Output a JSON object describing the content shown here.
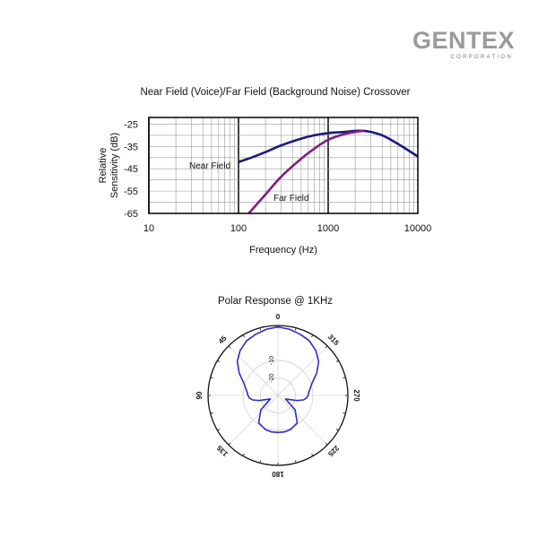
{
  "brand": {
    "name": "GENTEX",
    "subtitle": "CORPORATION"
  },
  "chart_data": [
    {
      "type": "line",
      "title": "Near Field (Voice)/Far Field (Background Noise) Crossover",
      "xlabel": "Frequency (Hz)",
      "ylabel": "Relative Sensitivity (dB)",
      "xscale": "log",
      "xlim": [
        10,
        10000
      ],
      "ylim": [
        -65,
        -22
      ],
      "xticks": [
        "10",
        "100",
        "1000",
        "10000"
      ],
      "xtick_values": [
        10,
        100,
        1000,
        10000
      ],
      "yticks": [
        "-25",
        "-35",
        "-45",
        "-55",
        "-65"
      ],
      "ytick_values": [
        -25,
        -35,
        -45,
        -55,
        -65
      ],
      "grid": true,
      "series": [
        {
          "name": "Near Field",
          "color": "#1a1a7a",
          "x": [
            100,
            150,
            200,
            300,
            500,
            700,
            1000,
            1500,
            2000,
            2500,
            3000,
            4000,
            5000,
            7000,
            10000
          ],
          "y": [
            -42,
            -39.5,
            -37.5,
            -34.5,
            -31.5,
            -30,
            -29,
            -28.5,
            -28,
            -28,
            -28.5,
            -30,
            -32,
            -35.5,
            -39.5
          ]
        },
        {
          "name": "Far Field",
          "color": "#7f1f7f",
          "x": [
            130,
            200,
            300,
            500,
            700,
            1000,
            1500,
            2000,
            2500
          ],
          "y": [
            -65,
            -56.5,
            -48.5,
            -40.5,
            -36,
            -32,
            -29.5,
            -28.5,
            -28
          ]
        }
      ]
    },
    {
      "type": "polar",
      "title": "Polar Response @ 1KHz",
      "angle_labels": [
        "0",
        "45",
        "90",
        "135",
        "180",
        "225",
        "270",
        "315"
      ],
      "ring_labels": [
        "-10",
        "-20"
      ],
      "series": [
        {
          "name": "",
          "color": "#2c2fbf",
          "angle_deg": [
            0,
            10,
            20,
            30,
            40,
            50,
            60,
            70,
            80,
            85,
            90,
            95,
            100,
            105,
            115,
            130,
            145,
            160,
            170,
            180,
            190,
            200,
            215,
            230,
            245,
            255,
            260,
            265,
            270,
            275,
            280,
            290,
            300,
            310,
            320,
            330,
            340,
            350,
            360
          ],
          "radius": [
            0.98,
            0.96,
            0.93,
            0.9,
            0.84,
            0.76,
            0.64,
            0.52,
            0.46,
            0.44,
            0.43,
            0.41,
            0.37,
            0.28,
            0.12,
            0.32,
            0.48,
            0.52,
            0.53,
            0.53,
            0.53,
            0.52,
            0.48,
            0.32,
            0.12,
            0.28,
            0.37,
            0.41,
            0.43,
            0.44,
            0.46,
            0.52,
            0.64,
            0.76,
            0.84,
            0.9,
            0.93,
            0.96,
            0.98
          ]
        }
      ]
    }
  ]
}
